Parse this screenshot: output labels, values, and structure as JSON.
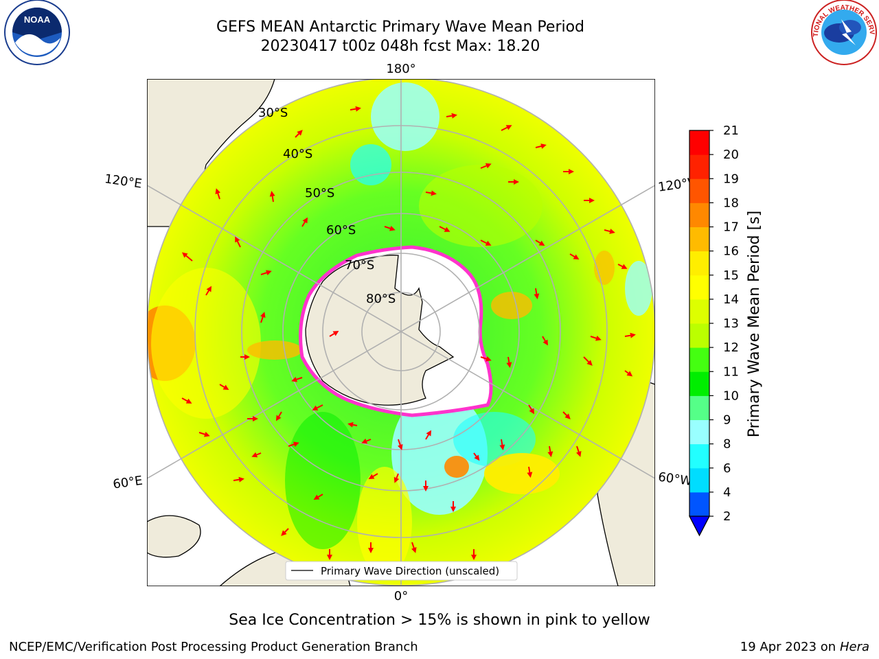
{
  "title": {
    "line1": "GEFS MEAN Antarctic Primary Wave Mean Period",
    "line2": "20230417 t00z 048h fcst   Max: 18.20"
  },
  "map": {
    "projection": "south-polar-stereographic",
    "longitude_labels": {
      "top": "180°",
      "bottom": "0°",
      "upper_left": "120°E",
      "lower_left": "60°E",
      "upper_right": "120°W",
      "lower_right": "60°W"
    },
    "latitude_labels": [
      "30°S",
      "40°S",
      "50°S",
      "60°S",
      "70°S",
      "80°S"
    ],
    "legend": "Primary Wave Direction (unscaled)",
    "colors": {
      "land": "#efebdb",
      "ice": "#ffffff",
      "ice_edge": "#ff33cc",
      "arrow": "#ff0000",
      "grid": "#b0b0b0"
    }
  },
  "colorbar": {
    "label": "Primary Wave Mean Period [s]",
    "ticks": [
      "2",
      "4",
      "6",
      "8",
      "9",
      "10",
      "11",
      "12",
      "13",
      "14",
      "15",
      "16",
      "17",
      "18",
      "19",
      "20",
      "21"
    ],
    "colors": [
      "#0055ff",
      "#00ddff",
      "#22ffff",
      "#99ffff",
      "#55ff88",
      "#00ee00",
      "#44ff11",
      "#bbff00",
      "#ddff00",
      "#ffff00",
      "#ffee00",
      "#ffbb00",
      "#ff8800",
      "#ff5500",
      "#ff2200",
      "#ff0000"
    ],
    "under_color": "#0000ff"
  },
  "subnote": "Sea Ice Concentration > 15% is shown in pink to yellow",
  "footer": {
    "left": "NCEP/EMC/Verification Post Processing Product Generation Branch",
    "date": "19 Apr 2023 on ",
    "machine": "Hera"
  },
  "logos": {
    "left": "NOAA",
    "right": "NATIONAL WEATHER SERVICE"
  }
}
